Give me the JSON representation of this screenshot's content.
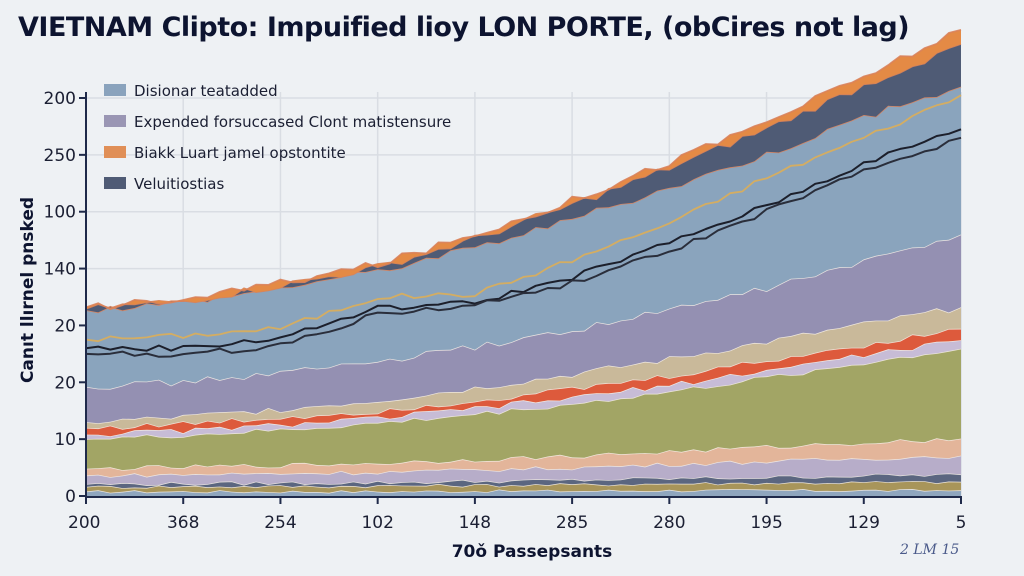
{
  "title": "VIETNAM Clipto: Impuified lioy LON PORTE, (obCires not  lag)",
  "watermark": "2 LM 15",
  "chart_data": {
    "type": "area",
    "title": "VIETNAM Clipto: Impuified lioy LON PORTE, (obCires not  lag)",
    "xlabel": "70ǒ Passepsants",
    "ylabel": "Canıt llırnel pnsked",
    "x_tick_labels": [
      "200",
      "368",
      "254",
      "102",
      "148",
      "285",
      "280",
      "195",
      "129",
      "5"
    ],
    "y_tick_labels": [
      "0",
      "10",
      "20",
      "20",
      "140",
      "100",
      "250",
      "200"
    ],
    "y_unit_note": "values expressed in gridline-slot units (0 = bottom tick, 7 = top tick)",
    "ylim": [
      0,
      7
    ],
    "grid": true,
    "legend": {
      "position": "top-left",
      "entries": [
        {
          "label": "Disionar teatadded",
          "color": "#8aa3bd"
        },
        {
          "label": "Expended forsuccased Clont matistensure",
          "color": "#9a96b4"
        },
        {
          "label": "Biakk Luart jamel opstontite",
          "color": "#e08f57"
        },
        {
          "label": "Veluitiostias",
          "color": "#4f5b75"
        }
      ]
    },
    "stack_series": [
      {
        "name": "base-blue",
        "color": "#8fa6be",
        "values": [
          0.08,
          0.08,
          0.08,
          0.08,
          0.09,
          0.09,
          0.1,
          0.1,
          0.1,
          0.1
        ]
      },
      {
        "name": "olive-thin",
        "color": "#a8955a",
        "values": [
          0.08,
          0.09,
          0.09,
          0.1,
          0.1,
          0.11,
          0.12,
          0.13,
          0.14,
          0.15
        ]
      },
      {
        "name": "slate-thin",
        "color": "#5b6680",
        "values": [
          0.05,
          0.05,
          0.06,
          0.06,
          0.07,
          0.08,
          0.09,
          0.1,
          0.12,
          0.13
        ]
      },
      {
        "name": "lilac-low",
        "color": "#b7adc9",
        "values": [
          0.15,
          0.16,
          0.17,
          0.18,
          0.2,
          0.22,
          0.25,
          0.28,
          0.3,
          0.33
        ]
      },
      {
        "name": "peach",
        "color": "#e3b59a",
        "values": [
          0.12,
          0.13,
          0.14,
          0.16,
          0.18,
          0.2,
          0.22,
          0.25,
          0.28,
          0.3
        ]
      },
      {
        "name": "olive-green",
        "color": "#a2a565",
        "values": [
          0.52,
          0.56,
          0.62,
          0.7,
          0.8,
          0.92,
          1.05,
          1.22,
          1.4,
          1.58
        ]
      },
      {
        "name": "pale-lilac",
        "color": "#c7bcd6",
        "values": [
          0.08,
          0.08,
          0.09,
          0.09,
          0.1,
          0.11,
          0.12,
          0.13,
          0.14,
          0.15
        ]
      },
      {
        "name": "red",
        "color": "#dd5a3c",
        "values": [
          0.12,
          0.12,
          0.13,
          0.13,
          0.14,
          0.15,
          0.16,
          0.17,
          0.18,
          0.2
        ]
      },
      {
        "name": "tan",
        "color": "#c9b99a",
        "values": [
          0.1,
          0.12,
          0.15,
          0.18,
          0.22,
          0.26,
          0.3,
          0.33,
          0.36,
          0.38
        ]
      },
      {
        "name": "purple",
        "color": "#9490b2",
        "values": [
          0.62,
          0.62,
          0.64,
          0.68,
          0.72,
          0.78,
          0.86,
          0.95,
          1.1,
          1.28
        ]
      },
      {
        "name": "light-blue",
        "color": "#8aa4bd",
        "values": [
          1.35,
          1.4,
          1.5,
          1.6,
          1.75,
          1.95,
          2.15,
          2.35,
          2.55,
          2.6
        ]
      },
      {
        "name": "dark-slate",
        "color": "#4f5b75",
        "values": [
          0.02,
          0.02,
          0.03,
          0.06,
          0.15,
          0.25,
          0.35,
          0.45,
          0.55,
          0.75
        ]
      },
      {
        "name": "orange",
        "color": "#e48a45",
        "values": [
          0.03,
          0.03,
          0.04,
          0.05,
          0.07,
          0.08,
          0.1,
          0.12,
          0.15,
          0.25
        ]
      }
    ],
    "lines": [
      {
        "name": "gold-line",
        "color": "#d4ad62",
        "values": [
          2.75,
          2.82,
          2.95,
          3.5,
          3.55,
          4.15,
          4.8,
          5.6,
          6.3,
          7.05
        ]
      },
      {
        "name": "black-line-upper",
        "color": "#1c1f2b",
        "values": [
          2.6,
          2.6,
          2.78,
          3.3,
          3.4,
          3.85,
          4.45,
          5.1,
          5.85,
          6.45
        ]
      },
      {
        "name": "black-line-lower",
        "color": "#2a2e3b",
        "values": [
          2.5,
          2.48,
          2.65,
          3.2,
          3.35,
          3.75,
          4.3,
          5.0,
          5.7,
          6.3
        ]
      }
    ]
  }
}
